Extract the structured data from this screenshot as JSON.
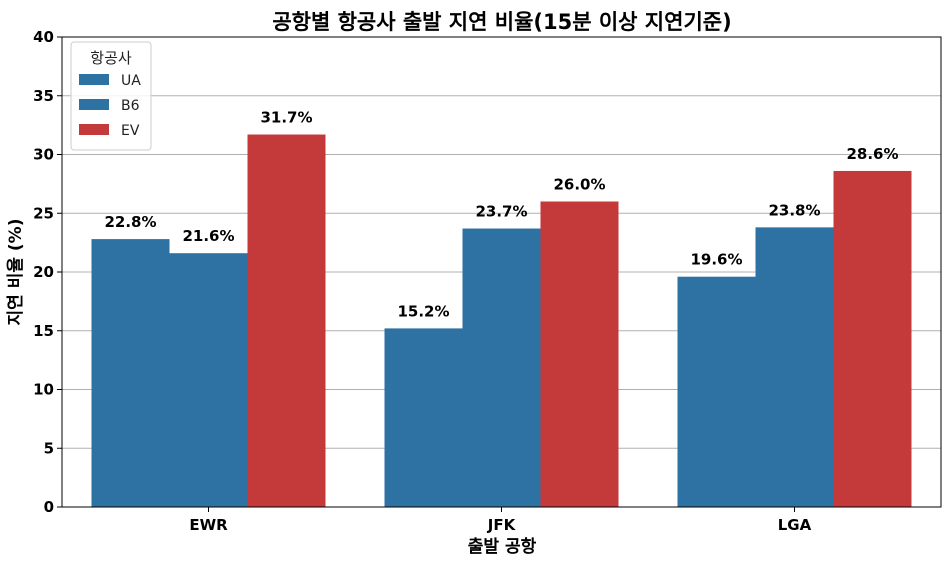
{
  "chart_data": {
    "type": "bar",
    "title": "공항별 항공사 출발 지연 비율(15분 이상 지연기준)",
    "xlabel": "출발 공항",
    "ylabel": "지연 비율 (%)",
    "categories": [
      "EWR",
      "JFK",
      "LGA"
    ],
    "series": [
      {
        "name": "UA",
        "color": "#2e72a4",
        "values": [
          22.8,
          null,
          19.6
        ]
      },
      {
        "name": "B6",
        "color": "#2e72a4",
        "values": [
          21.6,
          23.7,
          23.8
        ]
      },
      {
        "name": "EV",
        "color": "#c43a3b",
        "values": [
          31.7,
          26.0,
          28.6
        ]
      }
    ],
    "extra_bars": [
      {
        "category": "JFK",
        "slot": 0,
        "value": 15.2,
        "color": "#2e72a4"
      }
    ],
    "ylim": [
      0,
      40
    ],
    "yticks": [
      0,
      5,
      10,
      15,
      20,
      25,
      30,
      35,
      40
    ],
    "grid": "horizontal",
    "legend": {
      "title": "항공사",
      "placement": "top-left"
    }
  }
}
